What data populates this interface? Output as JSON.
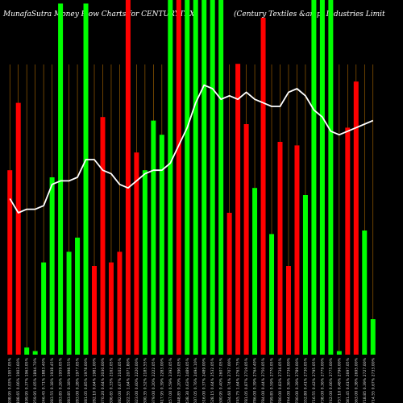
{
  "header": {
    "title_left": "MunafaSutra Money Flow Charts for CENTURYTEX",
    "title_right": "(Century Textiles &amp; Industries Limit"
  },
  "chart_data": {
    "type": "bar",
    "title": "MunafaSutra Money Flow Charts for CENTURYTEX",
    "subtitle": "(Century Textiles &amp; Industries Limit",
    "ylim": [
      0,
      100
    ],
    "grid": true,
    "colors": {
      "up": "#00ff00",
      "down": "#ff0000",
      "line": "#ffffff",
      "grid": "#b06a00",
      "background": "#000000"
    },
    "categories": [
      "2208.95 0.03% 1957.05%",
      "2188.65 0.06% 1903.60%",
      "2199.95 0.37% 1963.05%",
      "2259.95 0.05% 1894.70%",
      "2246.45 0.71% 1883.40%",
      "2283.55 0.18% 1938.45%",
      "2283.85 0.26% 1959.05%",
      "2283.85 0.18% 1998.55%",
      "2283.00 0.28% 1977.05%",
      "2281.05 0.85% 1978.00%",
      "2282.10 0.64% 1981.00%",
      "2270.20 0.64% 2030.00%",
      "2306.65 0.33% 2162.05%",
      "2282.00 0.67% 2102.05%",
      "2322.55 1.64% 2071.80%",
      "2323.00 0.60% 2220.00%",
      "2300.35 0.52% 2185.55%",
      "2379.00 0.20% 2222.05%",
      "2417.95 0.39% 2283.00%",
      "2457.00 0.59% 2392.05%",
      "2448.85 0.20% 2390.05%",
      "2438.30 0.63% 2489.05%",
      "2507.05 0.76% 2494.10%",
      "2516.00 0.37% 2489.00%",
      "2528.15 0.64% 2532.05%",
      "2600.95 0.40% 2607.05%",
      "2634.60 0.74% 2707.00%",
      "2745.75 1.64% 2763.75%",
      "2781.05 0.87% 2719.05%",
      "2786.00 0.39% 2764.40%",
      "2784.00 0.44% 2750.05%",
      "2799.85 0.59% 2770.05%",
      "2780.00 0.83% 2736.05%",
      "2744.00 0.36% 2736.00%",
      "2700.00 0.39% 2789.00%",
      "2652.80 0.41% 2730.05%",
      "2716.55 0.42% 2795.05%",
      "2738.00 0.36% 2779.00%",
      "2742.00 0.06% 2775.00%",
      "2757.10 0.48% 2796.00%",
      "2681.45 0.61% 2697.05%",
      "2663.00 0.38% 2695.00%",
      "2718.85 0.39% 2727.00%",
      "2714.55 0.67% 2733.00%"
    ],
    "series": [
      {
        "values": [
          52,
          71,
          2,
          1,
          26,
          50,
          99,
          29,
          33,
          99,
          25,
          67,
          26,
          29,
          100,
          57,
          52,
          66,
          62,
          100,
          100,
          100,
          100,
          100,
          100,
          100,
          40,
          82,
          65,
          47,
          95,
          34,
          60,
          25,
          59,
          45,
          100,
          100,
          100,
          1,
          64,
          77,
          35,
          10
        ],
        "up": [
          false,
          false,
          true,
          true,
          true,
          true,
          true,
          true,
          true,
          true,
          false,
          false,
          false,
          false,
          false,
          false,
          true,
          true,
          true,
          true,
          false,
          true,
          true,
          true,
          true,
          true,
          false,
          false,
          false,
          true,
          false,
          true,
          false,
          false,
          false,
          true,
          true,
          true,
          true,
          true,
          false,
          false,
          true,
          true
        ]
      },
      {
        "values": [
          44,
          40,
          41,
          41,
          42,
          48,
          49,
          49,
          50,
          55,
          55,
          52,
          51,
          48,
          47,
          49,
          51,
          52,
          52,
          54,
          59,
          64,
          71,
          76,
          75,
          72,
          73,
          72,
          74,
          72,
          71,
          70,
          70,
          74,
          75,
          73,
          69,
          67,
          63,
          62,
          63,
          64,
          65,
          66
        ]
      }
    ]
  }
}
